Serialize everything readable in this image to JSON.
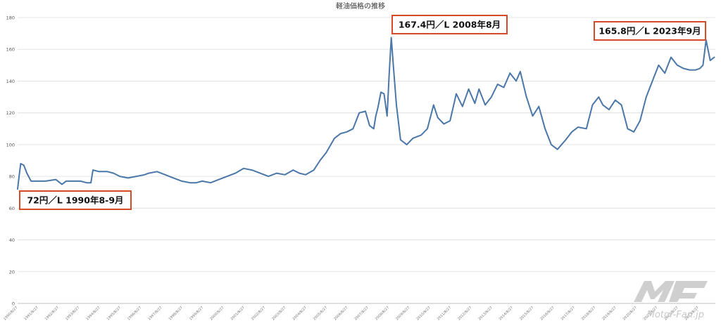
{
  "chart_data": {
    "type": "line",
    "title": "軽油価格の推移",
    "xlabel": "",
    "ylabel": "",
    "ylim": [
      0,
      180
    ],
    "y_ticks": [
      0,
      20,
      40,
      60,
      80,
      100,
      120,
      140,
      160,
      180
    ],
    "x_tick_labels": [
      "1990/8/27",
      "1991/8/27",
      "1992/8/27",
      "1993/8/27",
      "1994/8/27",
      "1995/8/27",
      "1996/8/27",
      "1997/8/27",
      "1998/8/27",
      "1999/8/27",
      "2000/8/27",
      "2001/8/27",
      "2002/8/27",
      "2003/8/27",
      "2004/8/27",
      "2005/8/27",
      "2006/8/27",
      "2007/8/27",
      "2008/8/27",
      "2009/8/27",
      "2010/8/27",
      "2011/8/27",
      "2012/8/27",
      "2013/8/27",
      "2014/8/27",
      "2015/8/27",
      "2016/8/27",
      "2017/8/27",
      "2018/8/27",
      "2019/8/27",
      "2020/8/27",
      "2021/8/27",
      "2022/8/27",
      "2023/8/27"
    ],
    "grid": true,
    "legend": "none",
    "line_color": "#4a77a8",
    "series": [
      {
        "x": [
          1990.65,
          1990.72,
          1990.8,
          1990.95,
          1991.1,
          1991.3,
          1991.6,
          1992.0,
          1992.5,
          1992.8,
          1993.0,
          1993.4,
          1993.7,
          1994.0,
          1994.2,
          1994.3,
          1994.6,
          1995.0,
          1995.3,
          1995.6,
          1996.0,
          1996.4,
          1996.8,
          1997.0,
          1997.4,
          1997.8,
          1998.2,
          1998.6,
          1999.0,
          1999.3,
          1999.6,
          2000.0,
          2000.4,
          2000.8,
          2001.2,
          2001.6,
          2002.0,
          2002.4,
          2002.8,
          2003.2,
          2003.6,
          2004.0,
          2004.3,
          2004.6,
          2005.0,
          2005.3,
          2005.6,
          2006.0,
          2006.3,
          2006.6,
          2006.9,
          2007.2,
          2007.5,
          2007.7,
          2007.9,
          2008.0,
          2008.1,
          2008.25,
          2008.4,
          2008.55,
          2008.65,
          2008.75,
          2008.85,
          2009.0,
          2009.2,
          2009.5,
          2009.8,
          2010.2,
          2010.5,
          2010.8,
          2011.0,
          2011.3,
          2011.6,
          2011.9,
          2012.2,
          2012.5,
          2012.8,
          2013.0,
          2013.3,
          2013.6,
          2013.9,
          2014.2,
          2014.5,
          2014.8,
          2015.0,
          2015.3,
          2015.6,
          2015.9,
          2016.2,
          2016.5,
          2016.8,
          2017.2,
          2017.5,
          2017.8,
          2018.2,
          2018.5,
          2018.8,
          2019.0,
          2019.3,
          2019.6,
          2019.9,
          2020.2,
          2020.5,
          2020.8,
          2021.1,
          2021.4,
          2021.7,
          2022.0,
          2022.3,
          2022.6,
          2022.9,
          2023.2,
          2023.5,
          2023.7,
          2023.85,
          2024.0,
          2024.2,
          2024.4
        ],
        "values": [
          72,
          80,
          88,
          87,
          82,
          77,
          77,
          77,
          78,
          75,
          77,
          77,
          77,
          76,
          76,
          84,
          83,
          83,
          82,
          80,
          79,
          80,
          81,
          82,
          83,
          81,
          79,
          77,
          76,
          76,
          77,
          76,
          78,
          80,
          82,
          85,
          84,
          82,
          80,
          82,
          81,
          84,
          82,
          81,
          84,
          90,
          95,
          104,
          107,
          108,
          110,
          120,
          121,
          112,
          110,
          118,
          123,
          133,
          132,
          118,
          145,
          167.4,
          150,
          125,
          103,
          100,
          104,
          106,
          110,
          125,
          117,
          113,
          115,
          132,
          124,
          135,
          126,
          135,
          125,
          130,
          138,
          136,
          145,
          140,
          146,
          130,
          118,
          124,
          110,
          100,
          97,
          103,
          108,
          111,
          110,
          125,
          130,
          125,
          122,
          128,
          125,
          110,
          108,
          115,
          130,
          140,
          150,
          145,
          155,
          150,
          148,
          147,
          147,
          148,
          150,
          165.8,
          153,
          155
        ]
      }
    ],
    "annotations": [
      {
        "label": "72円／L 1990年8-9月",
        "x": 1990.7,
        "y": 72
      },
      {
        "label": "167.4円／L 2008年8月",
        "x": 2008.75,
        "y": 167.4
      },
      {
        "label": "165.8円／L 2023年9月",
        "x": 2023.75,
        "y": 165.8
      }
    ]
  },
  "watermark": {
    "text": "Motor-Fan.jp",
    "color": "#c8c8c8"
  }
}
